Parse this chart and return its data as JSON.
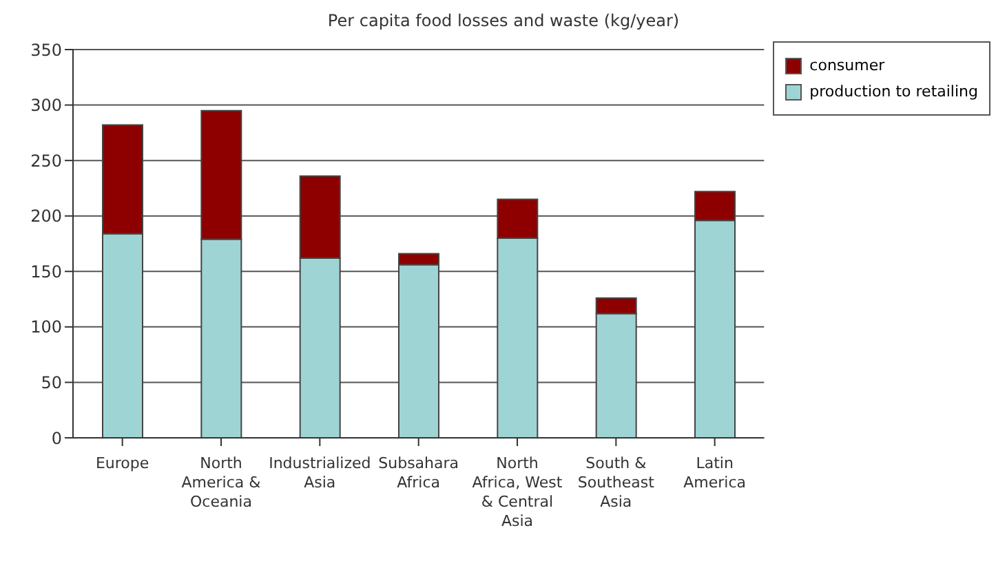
{
  "chart_data": {
    "type": "bar",
    "title": "Per capita food losses and waste (kg/year)",
    "categories": [
      "Europe",
      "North America & Oceania",
      "Industrialized Asia",
      "Subsahara Africa",
      "North Africa, West & Central Asia",
      "South & Southeast Asia",
      "Latin America"
    ],
    "series": [
      {
        "name": "production to retailing",
        "color": "#9fd4d4",
        "values": [
          184,
          179,
          162,
          156,
          180,
          112,
          196
        ]
      },
      {
        "name": "consumer",
        "color": "#8e0000",
        "values": [
          98,
          116,
          74,
          10,
          35,
          14,
          26
        ]
      }
    ],
    "stacked": true,
    "ylim": [
      0,
      350
    ],
    "yticks": [
      0,
      50,
      100,
      150,
      200,
      250,
      300,
      350
    ],
    "grid": "y",
    "legend": "top right"
  }
}
